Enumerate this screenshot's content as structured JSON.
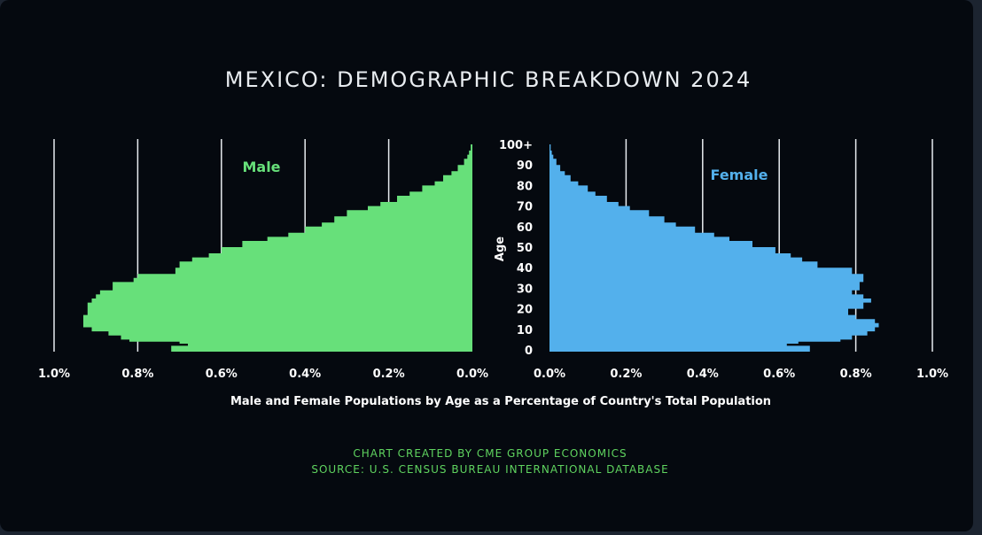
{
  "colors": {
    "background": "#05090f",
    "male": "#67e07a",
    "female": "#53b0ec",
    "credit": "#5fd35f",
    "gridline": "#e8ecf0"
  },
  "chart_data": {
    "type": "bar",
    "orientation": "horizontal",
    "subtype": "population-pyramid",
    "title": "MEXICO: DEMOGRAPHIC BREAKDOWN 2024",
    "xlabel": "Male and Female Populations by Age as a Percentage of Country's Total Population",
    "ylabel": "Age",
    "xlim": [
      0,
      1.0
    ],
    "ylim": [
      0,
      100
    ],
    "grid": true,
    "x_ticks": [
      "1.0%",
      "0.8%",
      "0.6%",
      "0.4%",
      "0.2%",
      "0.0%"
    ],
    "x_ticks_right": [
      "0.0%",
      "0.2%",
      "0.4%",
      "0.6%",
      "0.8%",
      "1.0%"
    ],
    "y_ticks": [
      "0",
      "10",
      "20",
      "30",
      "40",
      "50",
      "60",
      "70",
      "80",
      "90",
      "100+"
    ],
    "series": [
      {
        "name": "Male",
        "ages": [
          0,
          2,
          3,
          4,
          5,
          7,
          9,
          11,
          13,
          15,
          17,
          20,
          23,
          25,
          27,
          29,
          31,
          33,
          35,
          37,
          40,
          43,
          45,
          47,
          50,
          53,
          55,
          57,
          60,
          62,
          65,
          68,
          70,
          72,
          75,
          77,
          80,
          82,
          85,
          87,
          90,
          93,
          95,
          97,
          100
        ],
        "values": [
          0.72,
          0.68,
          0.7,
          0.82,
          0.84,
          0.87,
          0.91,
          0.93,
          0.93,
          0.93,
          0.92,
          0.92,
          0.91,
          0.9,
          0.89,
          0.86,
          0.86,
          0.81,
          0.8,
          0.71,
          0.7,
          0.67,
          0.63,
          0.6,
          0.55,
          0.49,
          0.44,
          0.4,
          0.36,
          0.33,
          0.3,
          0.25,
          0.22,
          0.18,
          0.15,
          0.12,
          0.09,
          0.07,
          0.05,
          0.035,
          0.02,
          0.012,
          0.008,
          0.004,
          0.0
        ]
      },
      {
        "name": "Female",
        "ages": [
          0,
          2,
          3,
          4,
          5,
          7,
          9,
          11,
          13,
          15,
          17,
          20,
          23,
          25,
          27,
          29,
          31,
          33,
          35,
          37,
          40,
          43,
          45,
          47,
          50,
          53,
          55,
          57,
          60,
          62,
          65,
          68,
          70,
          72,
          75,
          77,
          80,
          82,
          85,
          87,
          90,
          93,
          95,
          97,
          100
        ],
        "values": [
          0.68,
          0.62,
          0.65,
          0.76,
          0.79,
          0.83,
          0.85,
          0.86,
          0.85,
          0.8,
          0.78,
          0.82,
          0.84,
          0.82,
          0.79,
          0.81,
          0.81,
          0.82,
          0.82,
          0.79,
          0.7,
          0.66,
          0.63,
          0.59,
          0.53,
          0.47,
          0.43,
          0.38,
          0.33,
          0.3,
          0.26,
          0.21,
          0.18,
          0.15,
          0.12,
          0.1,
          0.075,
          0.055,
          0.04,
          0.028,
          0.018,
          0.01,
          0.006,
          0.003,
          0.0
        ]
      }
    ],
    "credits": [
      "CHART CREATED BY CME GROUP ECONOMICS",
      "SOURCE: U.S. CENSUS BUREAU INTERNATIONAL DATABASE"
    ]
  }
}
